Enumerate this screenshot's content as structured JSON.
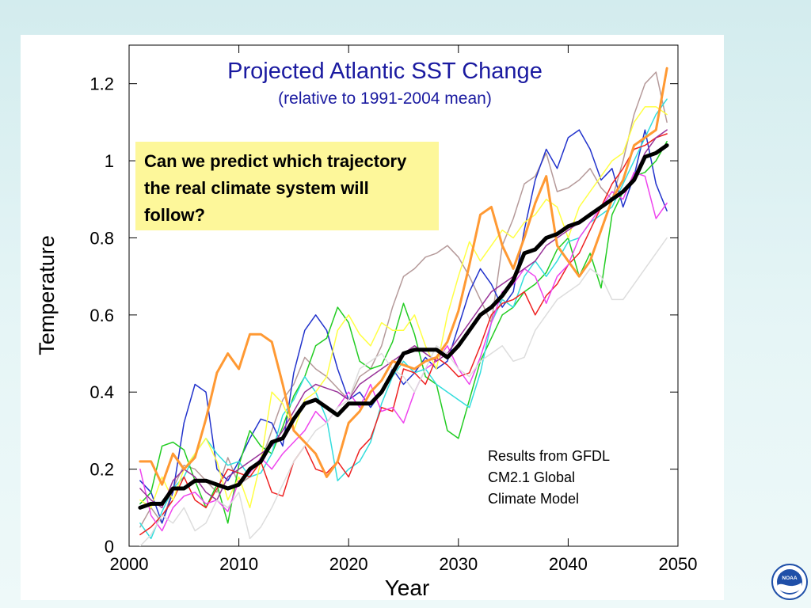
{
  "chart_data": {
    "type": "line",
    "title": "Projected Atlantic SST Change",
    "subtitle": "(relative to 1991-2004 mean)",
    "xlabel": "Year",
    "ylabel": "Temperature",
    "xlim": [
      2000,
      2050
    ],
    "ylim": [
      0,
      1.3
    ],
    "xticks": [
      2000,
      2010,
      2020,
      2030,
      2040,
      2050
    ],
    "yticks": [
      0,
      0.2,
      0.4,
      0.6,
      0.8,
      1,
      1.2
    ],
    "ytick_labels": [
      "0",
      "0.2",
      "0.4",
      "0.6",
      "0.8",
      "1",
      "1.2"
    ],
    "grid": false,
    "x": [
      2001,
      2002,
      2003,
      2004,
      2005,
      2006,
      2007,
      2008,
      2009,
      2010,
      2011,
      2012,
      2013,
      2014,
      2015,
      2016,
      2017,
      2018,
      2019,
      2020,
      2021,
      2022,
      2023,
      2024,
      2025,
      2026,
      2027,
      2028,
      2029,
      2030,
      2031,
      2032,
      2033,
      2034,
      2035,
      2036,
      2037,
      2038,
      2039,
      2040,
      2041,
      2042,
      2043,
      2044,
      2045,
      2046,
      2047,
      2048,
      2049
    ],
    "series": [
      {
        "name": "",
        "color": "#000000",
        "width": 5,
        "values": [
          0.1,
          0.11,
          0.11,
          0.15,
          0.15,
          0.17,
          0.17,
          0.16,
          0.15,
          0.16,
          0.2,
          0.22,
          0.27,
          0.28,
          0.33,
          0.37,
          0.38,
          0.36,
          0.34,
          0.37,
          0.37,
          0.37,
          0.4,
          0.45,
          0.5,
          0.51,
          0.51,
          0.51,
          0.49,
          0.52,
          0.56,
          0.6,
          0.62,
          0.65,
          0.69,
          0.76,
          0.77,
          0.8,
          0.81,
          0.83,
          0.84,
          0.86,
          0.88,
          0.9,
          0.92,
          0.95,
          1.01,
          1.02,
          1.04
        ]
      },
      {
        "name": "",
        "color": "#ff9933",
        "width": 3,
        "values": [
          0.22,
          0.22,
          0.16,
          0.24,
          0.2,
          0.23,
          0.33,
          0.45,
          0.5,
          0.46,
          0.55,
          0.55,
          0.53,
          0.42,
          0.3,
          0.27,
          0.24,
          0.18,
          0.22,
          0.32,
          0.35,
          0.4,
          0.43,
          0.48,
          0.47,
          0.46,
          0.48,
          0.49,
          0.53,
          0.61,
          0.73,
          0.86,
          0.88,
          0.78,
          0.72,
          0.8,
          0.89,
          0.96,
          0.78,
          0.74,
          0.7,
          0.74,
          0.82,
          0.9,
          0.95,
          1.04,
          1.06,
          1.08,
          1.24
        ]
      },
      {
        "name": "",
        "color": "#b59a9a",
        "width": 1.5,
        "values": [
          0.05,
          0.1,
          0.06,
          0.15,
          0.21,
          0.2,
          0.17,
          0.14,
          0.23,
          0.16,
          0.18,
          0.22,
          0.3,
          0.38,
          0.42,
          0.49,
          0.46,
          0.44,
          0.41,
          0.38,
          0.44,
          0.46,
          0.52,
          0.62,
          0.7,
          0.72,
          0.75,
          0.76,
          0.78,
          0.75,
          0.7,
          0.64,
          0.58,
          0.78,
          0.85,
          0.94,
          0.96,
          1.02,
          0.92,
          0.93,
          0.95,
          0.98,
          0.93,
          0.9,
          1.0,
          1.12,
          1.2,
          1.23,
          1.1
        ]
      },
      {
        "name": "",
        "color": "#2233cc",
        "width": 1.5,
        "values": [
          0.17,
          0.14,
          0.06,
          0.14,
          0.32,
          0.42,
          0.4,
          0.2,
          0.17,
          0.22,
          0.28,
          0.33,
          0.32,
          0.26,
          0.45,
          0.56,
          0.6,
          0.56,
          0.46,
          0.38,
          0.4,
          0.36,
          0.4,
          0.46,
          0.42,
          0.45,
          0.49,
          0.46,
          0.48,
          0.57,
          0.66,
          0.72,
          0.68,
          0.62,
          0.66,
          0.82,
          0.95,
          1.03,
          0.98,
          1.06,
          1.08,
          1.03,
          0.95,
          0.98,
          0.88,
          0.96,
          1.08,
          0.94,
          0.87
        ]
      },
      {
        "name": "",
        "color": "#22cc22",
        "width": 1.5,
        "values": [
          0.11,
          0.14,
          0.26,
          0.27,
          0.25,
          0.17,
          0.1,
          0.16,
          0.06,
          0.21,
          0.3,
          0.26,
          0.24,
          0.31,
          0.39,
          0.44,
          0.52,
          0.54,
          0.62,
          0.58,
          0.48,
          0.46,
          0.47,
          0.53,
          0.63,
          0.55,
          0.44,
          0.42,
          0.3,
          0.28,
          0.38,
          0.48,
          0.54,
          0.6,
          0.62,
          0.66,
          0.68,
          0.71,
          0.77,
          0.8,
          0.7,
          0.76,
          0.67,
          0.86,
          0.92,
          0.96,
          0.97,
          1.0,
          1.05
        ]
      },
      {
        "name": "",
        "color": "#33dddd",
        "width": 1.5,
        "values": [
          0.06,
          0.02,
          0.09,
          0.15,
          0.18,
          0.24,
          0.28,
          0.24,
          0.21,
          0.22,
          0.18,
          0.19,
          0.24,
          0.34,
          0.38,
          0.44,
          0.4,
          0.33,
          0.17,
          0.2,
          0.22,
          0.27,
          0.37,
          0.44,
          0.48,
          0.45,
          0.46,
          0.42,
          0.4,
          0.38,
          0.36,
          0.45,
          0.58,
          0.64,
          0.62,
          0.7,
          0.74,
          0.7,
          0.74,
          0.79,
          0.8,
          0.84,
          0.86,
          0.88,
          0.94,
          1.0,
          1.06,
          1.12,
          1.16
        ]
      },
      {
        "name": "",
        "color": "#ee2222",
        "width": 1.5,
        "values": [
          0.03,
          0.05,
          0.08,
          0.12,
          0.18,
          0.12,
          0.1,
          0.15,
          0.2,
          0.19,
          0.18,
          0.22,
          0.14,
          0.13,
          0.22,
          0.26,
          0.2,
          0.19,
          0.22,
          0.18,
          0.25,
          0.28,
          0.36,
          0.35,
          0.46,
          0.45,
          0.42,
          0.49,
          0.47,
          0.44,
          0.45,
          0.52,
          0.6,
          0.63,
          0.64,
          0.66,
          0.6,
          0.65,
          0.68,
          0.73,
          0.76,
          0.82,
          0.88,
          0.94,
          0.98,
          1.03,
          1.04,
          1.06,
          1.07
        ]
      },
      {
        "name": "",
        "color": "#ee44ee",
        "width": 1.5,
        "values": [
          0.2,
          0.08,
          0.04,
          0.1,
          0.13,
          0.14,
          0.11,
          0.12,
          0.09,
          0.17,
          0.19,
          0.23,
          0.2,
          0.24,
          0.27,
          0.3,
          0.35,
          0.32,
          0.36,
          0.4,
          0.36,
          0.42,
          0.35,
          0.36,
          0.32,
          0.4,
          0.46,
          0.48,
          0.52,
          0.46,
          0.42,
          0.49,
          0.58,
          0.66,
          0.68,
          0.72,
          0.7,
          0.63,
          0.7,
          0.73,
          0.8,
          0.84,
          0.88,
          0.92,
          0.9,
          0.97,
          0.96,
          0.85,
          0.89
        ]
      },
      {
        "name": "",
        "color": "#ffff44",
        "width": 1.5,
        "values": [
          0.12,
          0.1,
          0.18,
          0.12,
          0.2,
          0.24,
          0.28,
          0.22,
          0.12,
          0.18,
          0.1,
          0.22,
          0.4,
          0.37,
          0.3,
          0.38,
          0.4,
          0.44,
          0.56,
          0.6,
          0.55,
          0.52,
          0.58,
          0.56,
          0.56,
          0.6,
          0.52,
          0.46,
          0.6,
          0.7,
          0.79,
          0.74,
          0.78,
          0.82,
          0.8,
          0.84,
          0.86,
          0.9,
          0.88,
          0.8,
          0.88,
          0.92,
          0.96,
          1.0,
          1.02,
          1.1,
          1.14,
          1.14,
          1.12
        ]
      },
      {
        "name": "",
        "color": "#993399",
        "width": 1.5,
        "values": [
          0.15,
          0.12,
          0.1,
          0.17,
          0.2,
          0.18,
          0.14,
          0.12,
          0.18,
          0.2,
          0.22,
          0.24,
          0.26,
          0.3,
          0.35,
          0.4,
          0.42,
          0.41,
          0.4,
          0.38,
          0.42,
          0.44,
          0.46,
          0.48,
          0.5,
          0.52,
          0.5,
          0.48,
          0.5,
          0.54,
          0.58,
          0.62,
          0.66,
          0.68,
          0.7,
          0.72,
          0.74,
          0.78,
          0.8,
          0.82,
          0.84,
          0.86,
          0.88,
          0.9,
          0.92,
          0.96,
          1.02,
          1.06,
          1.08
        ]
      },
      {
        "name": "",
        "color": "#dddddd",
        "width": 1.5,
        "values": [
          0.0,
          0.03,
          0.08,
          0.06,
          0.1,
          0.04,
          0.06,
          0.12,
          0.1,
          0.14,
          0.02,
          0.05,
          0.1,
          0.16,
          0.22,
          0.26,
          0.3,
          0.32,
          0.36,
          0.38,
          0.46,
          0.48,
          0.5,
          0.46,
          0.44,
          0.4,
          0.46,
          0.52,
          0.5,
          0.46,
          0.44,
          0.48,
          0.5,
          0.52,
          0.48,
          0.49,
          0.56,
          0.6,
          0.64,
          0.66,
          0.68,
          0.72,
          0.7,
          0.64,
          0.64,
          0.68,
          0.72,
          0.76,
          0.8
        ]
      }
    ]
  },
  "callout": {
    "text": "Can we predict which trajectory the real climate system will follow?"
  },
  "source_note": {
    "lines": [
      "Results from GFDL",
      "CM2.1 Global",
      "Climate Model"
    ]
  },
  "logo": {
    "icon": "noaa-logo-icon",
    "text": "NOAA"
  }
}
